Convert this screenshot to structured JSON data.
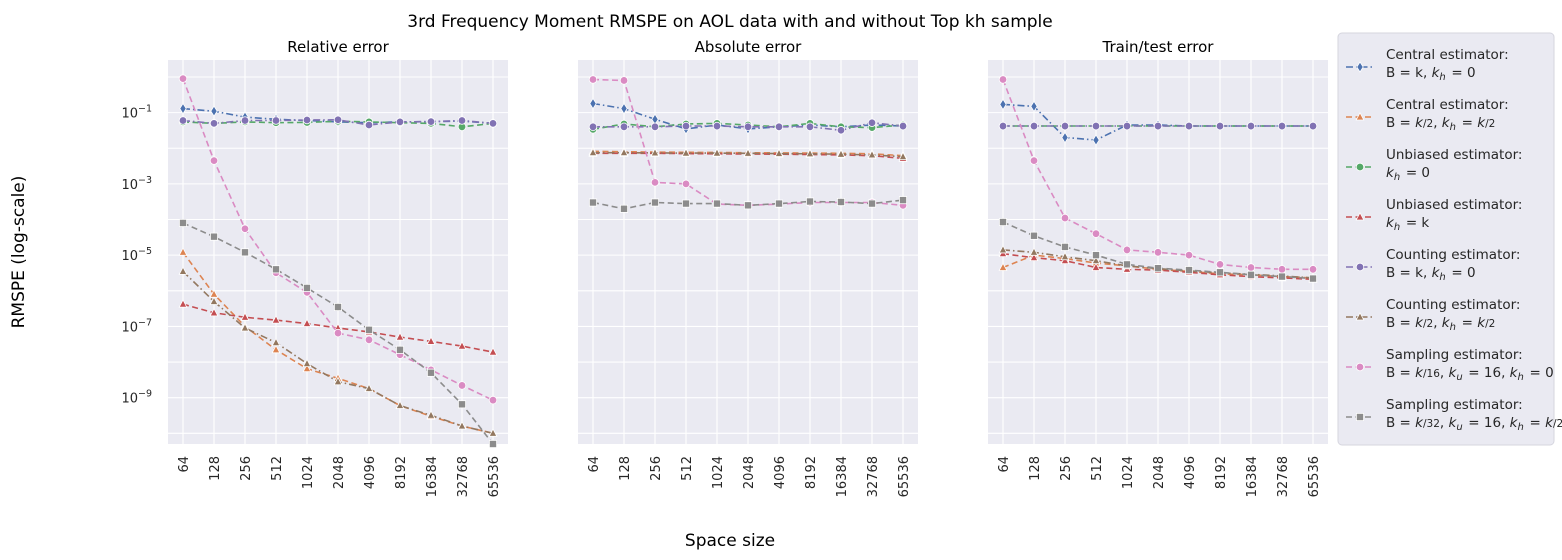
{
  "figure": {
    "suptitle": "3rd Frequency Moment RMSPE on AOL data with and without Top kh sample",
    "xlabel": "Space size",
    "ylabel": "RMSPE (log-scale)",
    "colors": {
      "background": "#eaeaf2",
      "grid": "#ffffff",
      "blue": "#4c72b0",
      "orange": "#dd8452",
      "green": "#55a868",
      "red": "#c44e52",
      "purple": "#8172b3",
      "brown": "#937860",
      "pink": "#da8bc3",
      "gray": "#8c8c8c"
    }
  },
  "chart_data": [
    {
      "type": "line",
      "title": "Relative error",
      "yscale": "log",
      "ylim": [
        5e-11,
        3
      ],
      "yticks": [
        1e-09,
        1e-07,
        1e-05,
        0.001,
        0.1
      ],
      "ytick_labels": [
        "10^-9",
        "10^-7",
        "10^-5",
        "10^-3",
        "10^-1"
      ],
      "categories": [
        "64",
        "128",
        "256",
        "512",
        "1024",
        "2048",
        "4096",
        "8192",
        "16384",
        "32768",
        "65536"
      ],
      "series": [
        {
          "name": "Central estimator: B=k, kh=0",
          "values": [
            0.13,
            0.11,
            0.075,
            0.065,
            0.06,
            0.055,
            0.052,
            0.055,
            0.056,
            0.058,
            0.05
          ]
        },
        {
          "name": "Central estimator: B=k/2, kh=k/2",
          "values": [
            1.2e-05,
            8e-07,
            1e-07,
            2.2e-08,
            6.5e-09,
            3.5e-09,
            1.8e-09,
            6e-10,
            3e-10,
            1.6e-10,
            1e-10
          ]
        },
        {
          "name": "Unbiased estimator: kh=0",
          "values": [
            0.055,
            0.05,
            0.055,
            0.052,
            0.053,
            0.057,
            0.055,
            0.052,
            0.05,
            0.04,
            0.05
          ]
        },
        {
          "name": "Unbiased estimator: kh=k",
          "values": [
            4.2e-07,
            2.4e-07,
            1.8e-07,
            1.5e-07,
            1.2e-07,
            9e-08,
            7e-08,
            5e-08,
            3.8e-08,
            2.8e-08,
            1.9e-08
          ]
        },
        {
          "name": "Counting estimator: B=k, kh=0",
          "values": [
            0.06,
            0.05,
            0.06,
            0.06,
            0.062,
            0.063,
            0.045,
            0.055,
            0.056,
            0.06,
            0.05
          ]
        },
        {
          "name": "Counting estimator: B=k/2, kh=k/2",
          "values": [
            3.5e-06,
            5e-07,
            9e-08,
            3.5e-08,
            9e-09,
            2.8e-09,
            1.8e-09,
            6e-10,
            3.2e-10,
            1.6e-10,
            1e-10
          ]
        },
        {
          "name": "Sampling estimator: B=k/16, ku=16, kh=0",
          "values": [
            0.9,
            0.0045,
            5.5e-05,
            3.2e-06,
            9e-07,
            6.5e-08,
            4.2e-08,
            1.6e-08,
            6e-09,
            2.2e-09,
            8.5e-10
          ]
        },
        {
          "name": "Sampling estimator: B=k/32, ku=16, kh=k/2",
          "values": [
            8e-05,
            3.3e-05,
            1.2e-05,
            4e-06,
            1.2e-06,
            3.5e-07,
            8e-08,
            2.2e-08,
            5e-09,
            6.5e-10,
            5e-11
          ]
        }
      ]
    },
    {
      "type": "line",
      "title": "Absolute error",
      "yscale": "log",
      "ylim": [
        5e-11,
        3
      ],
      "categories": [
        "64",
        "128",
        "256",
        "512",
        "1024",
        "2048",
        "4096",
        "8192",
        "16384",
        "32768",
        "65536"
      ],
      "series": [
        {
          "name": "Central estimator: B=k, kh=0",
          "values": [
            0.18,
            0.13,
            0.065,
            0.035,
            0.045,
            0.035,
            0.04,
            0.045,
            0.04,
            0.045,
            0.042
          ]
        },
        {
          "name": "Central estimator: B=k/2, kh=k/2",
          "values": [
            0.0082,
            0.008,
            0.0078,
            0.0077,
            0.0076,
            0.0075,
            0.0074,
            0.0073,
            0.0072,
            0.007,
            0.0062
          ]
        },
        {
          "name": "Unbiased estimator: kh=0",
          "values": [
            0.034,
            0.048,
            0.04,
            0.048,
            0.05,
            0.045,
            0.04,
            0.05,
            0.04,
            0.038,
            0.045
          ]
        },
        {
          "name": "Unbiased estimator: kh=k",
          "values": [
            0.0072,
            0.0072,
            0.0072,
            0.0071,
            0.007,
            0.0069,
            0.0068,
            0.0067,
            0.0065,
            0.0062,
            0.0052
          ]
        },
        {
          "name": "Counting estimator: B=k, kh=0",
          "values": [
            0.04,
            0.04,
            0.04,
            0.042,
            0.042,
            0.04,
            0.04,
            0.04,
            0.032,
            0.052,
            0.042
          ]
        },
        {
          "name": "Counting estimator: B=k/2, kh=k/2",
          "values": [
            0.0075,
            0.0075,
            0.0074,
            0.0073,
            0.0073,
            0.0072,
            0.0071,
            0.007,
            0.0068,
            0.0065,
            0.0058
          ]
        },
        {
          "name": "Sampling estimator: B=k/16, ku=16, kh=0",
          "values": [
            0.85,
            0.8,
            0.0011,
            0.001,
            0.00027,
            0.00025,
            0.00027,
            0.0003,
            0.0003,
            0.0003,
            0.00025
          ]
        },
        {
          "name": "Sampling estimator: B=k/32, ku=16, kh=k/2",
          "values": [
            0.0003,
            0.0002,
            0.0003,
            0.00028,
            0.00028,
            0.00025,
            0.00028,
            0.00032,
            0.00031,
            0.00028,
            0.00035
          ]
        }
      ]
    },
    {
      "type": "line",
      "title": "Train/test error",
      "yscale": "log",
      "ylim": [
        5e-11,
        3
      ],
      "categories": [
        "64",
        "128",
        "256",
        "512",
        "1024",
        "2048",
        "4096",
        "8192",
        "16384",
        "32768",
        "65536"
      ],
      "series": [
        {
          "name": "Central estimator: B=k, kh=0",
          "values": [
            0.17,
            0.15,
            0.02,
            0.017,
            0.045,
            0.045,
            0.042,
            0.042,
            0.042,
            0.042,
            0.042
          ]
        },
        {
          "name": "Central estimator: B=k/2, kh=k/2",
          "values": [
            4.5e-06,
            1e-05,
            8e-06,
            6e-06,
            5e-06,
            4e-06,
            3.5e-06,
            3e-06,
            2.8e-06,
            2.5e-06,
            2.3e-06
          ]
        },
        {
          "name": "Unbiased estimator: kh=0",
          "values": [
            0.042,
            0.042,
            0.042,
            0.042,
            0.042,
            0.042,
            0.042,
            0.042,
            0.042,
            0.042,
            0.042
          ]
        },
        {
          "name": "Unbiased estimator: kh=k",
          "values": [
            1.1e-05,
            8.5e-06,
            7e-06,
            4.5e-06,
            4e-06,
            3.8e-06,
            3.3e-06,
            2.8e-06,
            2.5e-06,
            2.3e-06,
            2.1e-06
          ]
        },
        {
          "name": "Counting estimator: B=k, kh=0",
          "values": [
            0.042,
            0.042,
            0.042,
            0.042,
            0.042,
            0.042,
            0.042,
            0.042,
            0.042,
            0.042,
            0.042
          ]
        },
        {
          "name": "Counting estimator: B=k/2, kh=k/2",
          "values": [
            1.4e-05,
            1.2e-05,
            9e-06,
            7e-06,
            5e-06,
            4.2e-06,
            3.6e-06,
            3.2e-06,
            2.9e-06,
            2.6e-06,
            2.3e-06
          ]
        },
        {
          "name": "Sampling estimator: B=k/16, ku=16, kh=0",
          "values": [
            0.85,
            0.0045,
            0.00011,
            4e-05,
            1.4e-05,
            1.2e-05,
            1e-05,
            5.5e-06,
            4.5e-06,
            4e-06,
            4e-06
          ]
        },
        {
          "name": "Sampling estimator: B=k/32, ku=16, kh=k/2",
          "values": [
            8.5e-05,
            3.5e-05,
            1.7e-05,
            1e-05,
            5.5e-06,
            4.3e-06,
            3.8e-06,
            3.3e-06,
            2.8e-06,
            2.5e-06,
            2.2e-06
          ]
        }
      ]
    }
  ],
  "legend": {
    "placement": "right",
    "entries": [
      {
        "line1": "Central estimator:",
        "line2": "B = k, k_h = 0",
        "color": "#4c72b0",
        "marker": "diamond",
        "dash": "dashdot"
      },
      {
        "line1": "Central estimator:",
        "line2": "B = k/2, k_h = k/2",
        "color": "#dd8452",
        "marker": "triangle",
        "dash": "dash"
      },
      {
        "line1": "Unbiased estimator:",
        "line2": "k_h = 0",
        "color": "#55a868",
        "marker": "circle",
        "dash": "dash"
      },
      {
        "line1": "Unbiased estimator:",
        "line2": "k_h = k",
        "color": "#c44e52",
        "marker": "triangle",
        "dash": "dash"
      },
      {
        "line1": "Counting estimator:",
        "line2": "B = k, k_h = 0",
        "color": "#8172b3",
        "marker": "circle",
        "dash": "dashdot"
      },
      {
        "line1": "Counting estimator:",
        "line2": "B = k/2, k_h = k/2",
        "color": "#937860",
        "marker": "triangle",
        "dash": "dashdot"
      },
      {
        "line1": "Sampling estimator:",
        "line2": "B = k/16, k_u = 16, k_h = 0",
        "color": "#da8bc3",
        "marker": "circle",
        "dash": "dash"
      },
      {
        "line1": "Sampling estimator:",
        "line2": "B = k/32, k_u = 16, k_h = k/2",
        "color": "#8c8c8c",
        "marker": "square",
        "dash": "dash"
      }
    ]
  }
}
